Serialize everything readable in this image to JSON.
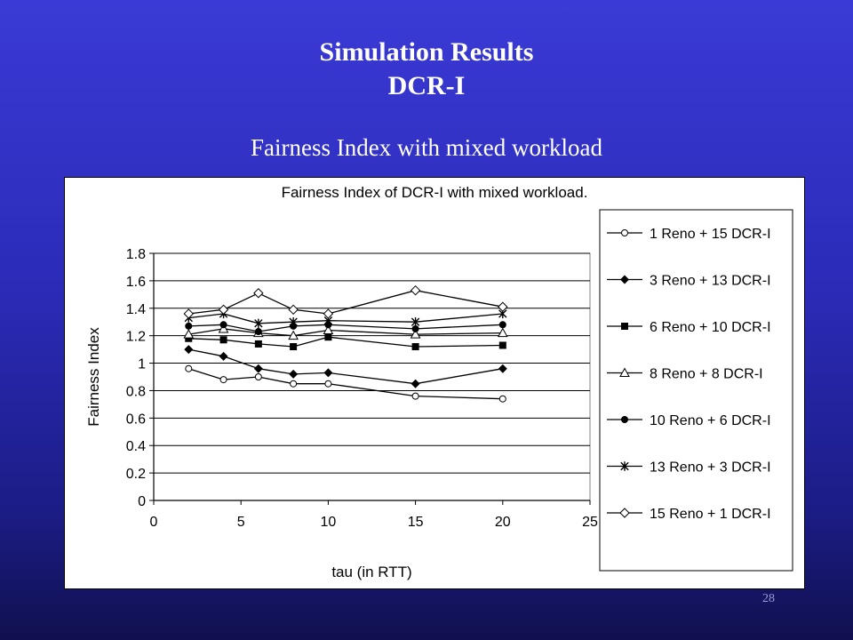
{
  "slide": {
    "title_line1": "Simulation Results",
    "title_line2": "DCR-I",
    "subtitle": "Fairness Index with mixed workload",
    "page_number": "28"
  },
  "chart_data": {
    "type": "line",
    "title": "Fairness Index of DCR-I with mixed workload.",
    "xlabel": "tau (in RTT)",
    "ylabel": "Fairness Index",
    "xlim": [
      0,
      25
    ],
    "ylim": [
      0,
      1.8
    ],
    "xticks": [
      0,
      5,
      10,
      15,
      20,
      25
    ],
    "yticks": [
      0,
      0.2,
      0.4,
      0.6,
      0.8,
      1,
      1.2,
      1.4,
      1.6,
      1.8
    ],
    "ytick_labels": [
      "0",
      "0.2",
      "0.4",
      "0.6",
      "0.8",
      "1",
      "1.2",
      "1.4",
      "1.6",
      "1.8"
    ],
    "grid": "horizontal",
    "legend_position": "right",
    "x": [
      2,
      4,
      6,
      8,
      10,
      15,
      20
    ],
    "series": [
      {
        "name": "1 Reno + 15 DCR-I",
        "marker": "open-circle",
        "values": [
          0.96,
          0.88,
          0.9,
          0.85,
          0.85,
          0.76,
          0.74
        ]
      },
      {
        "name": "3 Reno + 13 DCR-I",
        "marker": "filled-diamond",
        "values": [
          1.1,
          1.05,
          0.96,
          0.92,
          0.93,
          0.85,
          0.96
        ]
      },
      {
        "name": "6 Reno + 10 DCR-I",
        "marker": "filled-square",
        "values": [
          1.18,
          1.17,
          1.14,
          1.12,
          1.19,
          1.12,
          1.13
        ]
      },
      {
        "name": "8 Reno + 8 DCR-I",
        "marker": "open-triangle",
        "values": [
          1.21,
          1.25,
          1.22,
          1.2,
          1.24,
          1.21,
          1.22
        ]
      },
      {
        "name": "10 Reno + 6 DCR-I",
        "marker": "filled-circle",
        "values": [
          1.27,
          1.28,
          1.23,
          1.27,
          1.28,
          1.25,
          1.28
        ]
      },
      {
        "name": "13 Reno + 3 DCR-I",
        "marker": "star",
        "values": [
          1.33,
          1.36,
          1.29,
          1.3,
          1.31,
          1.3,
          1.36
        ]
      },
      {
        "name": "15 Reno + 1 DCR-I",
        "marker": "open-diamond",
        "values": [
          1.36,
          1.39,
          1.51,
          1.39,
          1.36,
          1.53,
          1.41
        ]
      }
    ]
  }
}
